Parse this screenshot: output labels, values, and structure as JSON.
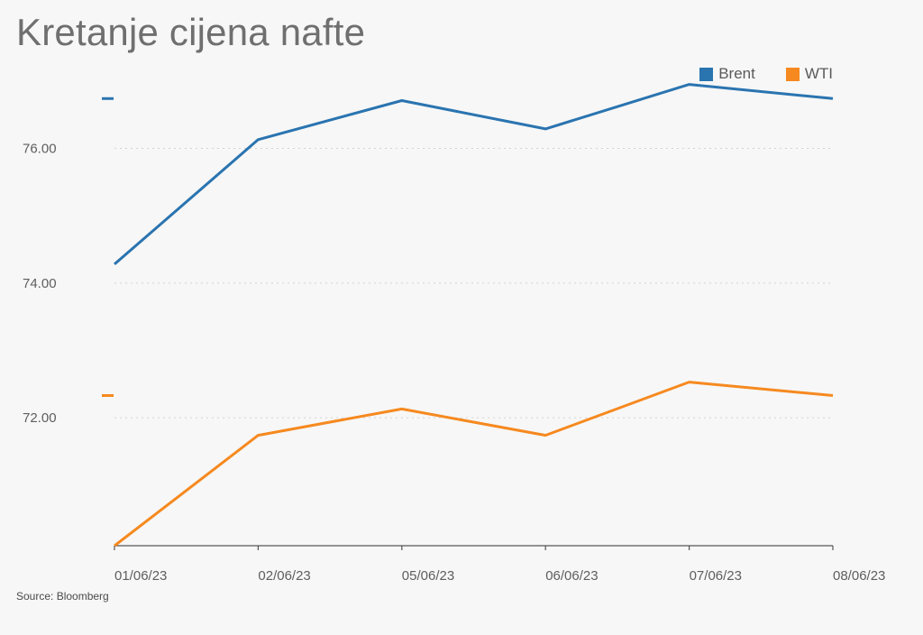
{
  "title": "Kretanje cijena nafte",
  "source": "Source: Bloomberg",
  "colors": {
    "brent": "#2a74b0",
    "wti": "#f6891f",
    "grid": "#d2d2d2",
    "axis": "#555555"
  },
  "chart_data": {
    "type": "line",
    "title": "Kretanje cijena nafte",
    "x": [
      "01/06/23",
      "02/06/23",
      "05/06/23",
      "06/06/23",
      "07/06/23",
      "08/06/23"
    ],
    "series": [
      {
        "name": "Brent",
        "color": "#2a74b0",
        "values": [
          74.28,
          76.13,
          76.71,
          76.29,
          76.95,
          76.74
        ]
      },
      {
        "name": "WTI",
        "color": "#f6891f",
        "values": [
          70.1,
          71.74,
          72.13,
          71.74,
          72.53,
          72.33
        ]
      }
    ],
    "y_ticks": [
      "72.00",
      "74.00",
      "76.00"
    ],
    "y_tick_values": [
      72,
      74,
      76
    ],
    "ylim": [
      70.1,
      77.4
    ],
    "grid": true,
    "grid_style": "dotted",
    "legend_position": "top-right",
    "last_value_markers": true
  }
}
